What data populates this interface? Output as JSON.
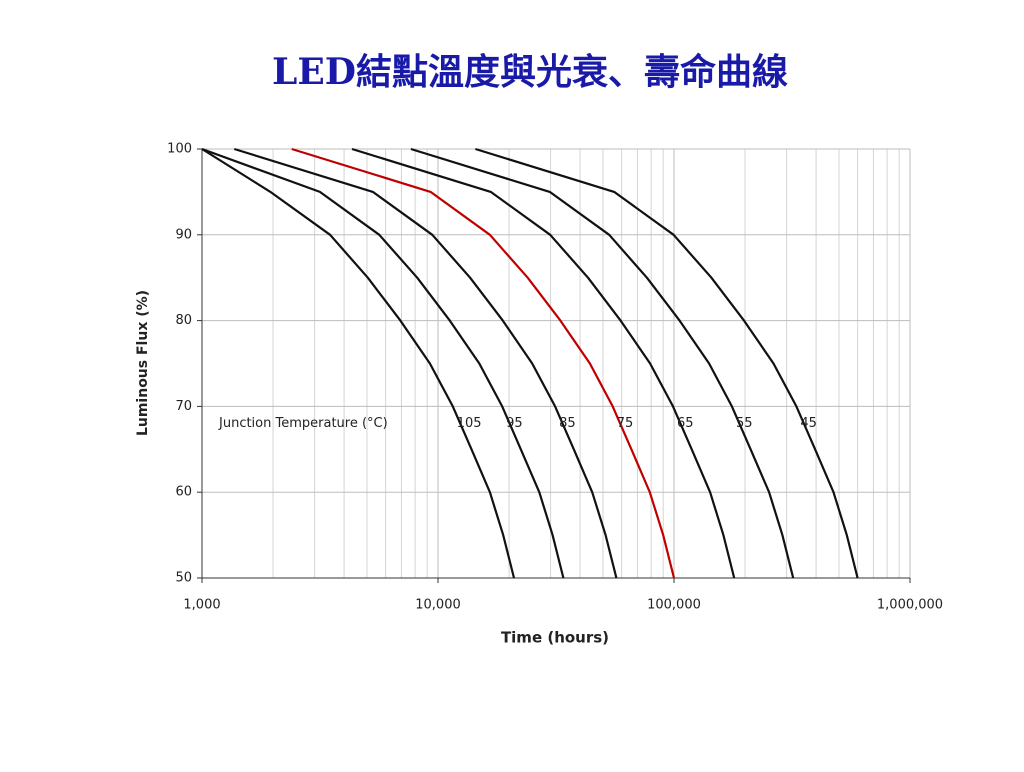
{
  "chart_data": {
    "type": "line",
    "title": "LED結點溫度與光衰、壽命曲線",
    "x_label": "Time (hours)",
    "y_label": "Luminous Flux (%)",
    "annotation": "Junction Temperature (°C)",
    "xscale": "log",
    "grid": true,
    "xlim": [
      1000,
      1000000
    ],
    "ylim": [
      50,
      100
    ],
    "xticks": [
      {
        "value": 1000,
        "label": "1,000"
      },
      {
        "value": 10000,
        "label": "10,000"
      },
      {
        "value": 100000,
        "label": "100,000"
      },
      {
        "value": 1000000,
        "label": "1,000,000"
      }
    ],
    "yticks": [
      50,
      60,
      70,
      80,
      90,
      100
    ],
    "series": [
      {
        "name": "105",
        "color": "#111111",
        "x": [
          1000,
          1950,
          3490,
          5040,
          6930,
          9240,
          11550,
          13860,
          16590,
          18900,
          21000
        ],
        "values": [
          100,
          95,
          90,
          85,
          80,
          75,
          70,
          65,
          60,
          55,
          50
        ]
      },
      {
        "name": "95",
        "color": "#111111",
        "x": [
          1000,
          3160,
          5640,
          8160,
          11220,
          14960,
          18700,
          22440,
          26860,
          30600,
          34000
        ],
        "values": [
          100,
          95,
          90,
          85,
          80,
          75,
          70,
          65,
          60,
          55,
          50
        ]
      },
      {
        "name": "85",
        "color": "#111111",
        "x": [
          1370,
          5300,
          9460,
          13680,
          18810,
          25080,
          31350,
          37620,
          45030,
          51300,
          57000
        ],
        "values": [
          100,
          95,
          90,
          85,
          80,
          75,
          70,
          65,
          60,
          55,
          50
        ]
      },
      {
        "name": "75",
        "color": "#c00000",
        "x": [
          2400,
          9300,
          16600,
          24000,
          33000,
          44000,
          55000,
          66000,
          79000,
          90000,
          100000
        ],
        "values": [
          100,
          95,
          90,
          85,
          80,
          75,
          70,
          65,
          60,
          55,
          50
        ]
      },
      {
        "name": "65",
        "color": "#111111",
        "x": [
          4320,
          16740,
          29880,
          43200,
          59400,
          79200,
          99000,
          118800,
          142200,
          162000,
          180000
        ],
        "values": [
          100,
          95,
          90,
          85,
          80,
          75,
          70,
          65,
          60,
          55,
          50
        ]
      },
      {
        "name": "55",
        "color": "#111111",
        "x": [
          7680,
          29760,
          53120,
          76800,
          105600,
          140800,
          176000,
          211200,
          252800,
          288000,
          320000
        ],
        "values": [
          100,
          95,
          90,
          85,
          80,
          75,
          70,
          65,
          60,
          55,
          50
        ]
      },
      {
        "name": "45",
        "color": "#111111",
        "x": [
          14400,
          55800,
          99600,
          144000,
          198000,
          264000,
          330000,
          396000,
          474000,
          540000,
          600000
        ],
        "values": [
          100,
          95,
          90,
          85,
          80,
          75,
          70,
          65,
          60,
          55,
          50
        ]
      }
    ]
  }
}
